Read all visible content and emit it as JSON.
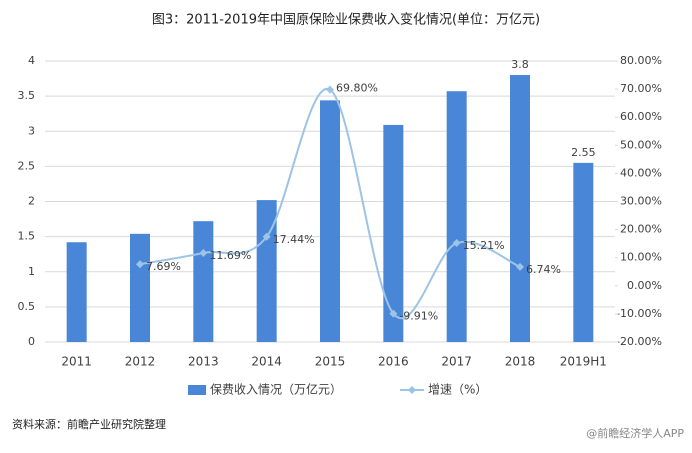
{
  "chart_data": {
    "type": "bar_line",
    "title": "图3：2011-2019年中国原保险业保费收入变化情况(单位：万亿元)",
    "categories": [
      "2011",
      "2012",
      "2013",
      "2014",
      "2015",
      "2016",
      "2017",
      "2018",
      "2019H1"
    ],
    "series": [
      {
        "name": "保费收入情况（万亿元）",
        "color": "#4a86d8",
        "type": "bar",
        "values": [
          1.42,
          1.54,
          1.72,
          2.02,
          3.44,
          3.09,
          3.57,
          3.8,
          2.55
        ],
        "value_labels": [
          null,
          null,
          null,
          null,
          null,
          null,
          null,
          "3.8",
          "2.55"
        ]
      },
      {
        "name": "增速（%）",
        "color": "#9dc3e6",
        "type": "line",
        "axis": "y2",
        "values": [
          null,
          7.69,
          11.69,
          17.44,
          69.8,
          -9.91,
          15.21,
          6.74,
          null
        ],
        "value_labels": [
          null,
          "7.69%",
          "11.69%",
          "17.44%",
          "69.80%",
          "-9.91%",
          "15.21%",
          "6.74%",
          null
        ]
      }
    ],
    "ylim": [
      0,
      4
    ],
    "yticks": [
      0,
      0.5,
      1,
      1.5,
      2,
      2.5,
      3,
      3.5,
      4
    ],
    "y2lim": [
      -20,
      80
    ],
    "y2ticks": [
      {
        "value": -20,
        "label": "-20.00%"
      },
      {
        "value": -10,
        "label": "-10.00%"
      },
      {
        "value": 0,
        "label": "0.00%"
      },
      {
        "value": 10,
        "label": "10.00%"
      },
      {
        "value": 20,
        "label": "20.00%"
      },
      {
        "value": 30,
        "label": "30.00%"
      },
      {
        "value": 40,
        "label": "40.00%"
      },
      {
        "value": 50,
        "label": "50.00%"
      },
      {
        "value": 60,
        "label": "60.00%"
      },
      {
        "value": 70,
        "label": "70.00%"
      },
      {
        "value": 80,
        "label": "80.00%"
      }
    ],
    "grid": true,
    "legend": "bottom",
    "source": "资料来源：前瞻产业研究院整理",
    "watermark": "@前瞻经济学人APP"
  }
}
